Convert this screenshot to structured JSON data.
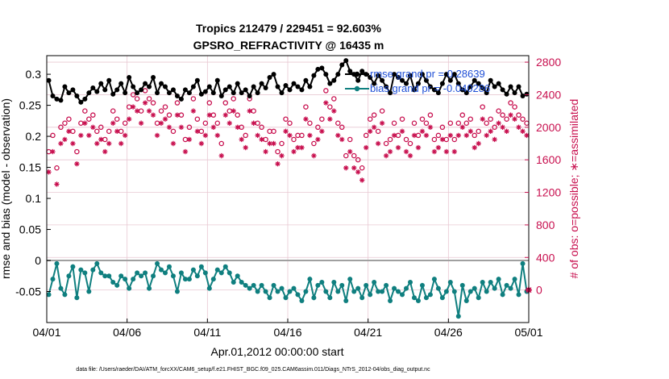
{
  "chart_data": {
    "type": "line",
    "title_line1": "Tropics 212479 / 229451 = 92.603%",
    "title_line2": "GPSRO_REFRACTIVITY @ 16435 m",
    "xlabel": "Apr.01,2012 00:00:00 start",
    "ylabel_left": "rmse and bias (model - observation)",
    "ylabel_right": "# of obs: o=possible; ∗=assimilated",
    "x_ticks": [
      "04/01",
      "04/06",
      "04/11",
      "04/16",
      "04/21",
      "04/26",
      "05/01"
    ],
    "x_range_days": [
      0,
      30
    ],
    "ylim_left": [
      -0.1,
      0.33
    ],
    "y_ticks_left": [
      "0.3",
      "0.25",
      "0.2",
      "0.15",
      "0.1",
      "0.05",
      "0",
      "-0.05"
    ],
    "y_tick_values_left": [
      0.3,
      0.25,
      0.2,
      0.15,
      0.1,
      0.05,
      0,
      -0.05
    ],
    "ylim_right": [
      -400,
      2880
    ],
    "y_ticks_right": [
      "2800",
      "2400",
      "2000",
      "1600",
      "1200",
      "800",
      "400",
      "0"
    ],
    "y_tick_values_right": [
      2800,
      2400,
      2000,
      1600,
      1200,
      800,
      400,
      0
    ],
    "legend": {
      "rmse_label": "rmse grand pr = 0.28639",
      "bias_label": "bias grand pr = -0.040286"
    },
    "footer": "data file: /Users/raeder/DAI/ATM_forcXX/CAM6_setup/f.e21.FHIST_BGC.f09_025.CAM6assim.011/Diags_NTrS_2012-04/obs_diag_output.nc",
    "colors": {
      "rmse": "#000000",
      "bias": "#0f7f7f",
      "obs": "#c8104f",
      "legend_text": "#1f4fd6",
      "grid": "#e8c8d2",
      "zero_line": "#a0a0a0"
    },
    "n_points": 120,
    "series": [
      {
        "name": "rmse",
        "axis": "left",
        "values": [
          0.29,
          0.265,
          0.26,
          0.258,
          0.28,
          0.27,
          0.275,
          0.265,
          0.255,
          0.26,
          0.27,
          0.278,
          0.272,
          0.285,
          0.275,
          0.29,
          0.268,
          0.275,
          0.285,
          0.27,
          0.295,
          0.28,
          0.27,
          0.275,
          0.285,
          0.28,
          0.295,
          0.27,
          0.285,
          0.28,
          0.27,
          0.275,
          0.265,
          0.26,
          0.275,
          0.27,
          0.28,
          0.29,
          0.268,
          0.272,
          0.28,
          0.27,
          0.29,
          0.265,
          0.275,
          0.28,
          0.27,
          0.285,
          0.27,
          0.275,
          0.265,
          0.28,
          0.27,
          0.285,
          0.278,
          0.295,
          0.3,
          0.28,
          0.27,
          0.282,
          0.275,
          0.285,
          0.28,
          0.275,
          0.29,
          0.28,
          0.298,
          0.308,
          0.31,
          0.3,
          0.285,
          0.29,
          0.3,
          0.315,
          0.322,
          0.305,
          0.3,
          0.29,
          0.305,
          0.3,
          0.295,
          0.285,
          0.298,
          0.29,
          0.28,
          0.27,
          0.3,
          0.295,
          0.29,
          0.285,
          0.298,
          0.275,
          0.285,
          0.3,
          0.29,
          0.28,
          0.275,
          0.27,
          0.285,
          0.3,
          0.29,
          0.3,
          0.285,
          0.275,
          0.27,
          0.28,
          0.29,
          0.285,
          0.278,
          0.27,
          0.29,
          0.28,
          0.285,
          0.275,
          0.268,
          0.28,
          0.27,
          0.28,
          0.265,
          0.268
        ]
      },
      {
        "name": "bias",
        "axis": "left",
        "values": [
          -0.055,
          -0.03,
          -0.005,
          -0.045,
          -0.055,
          -0.025,
          -0.01,
          -0.06,
          -0.015,
          -0.02,
          -0.05,
          -0.015,
          -0.005,
          -0.02,
          -0.025,
          -0.025,
          -0.035,
          -0.04,
          -0.025,
          -0.03,
          -0.045,
          -0.03,
          -0.02,
          -0.025,
          -0.02,
          -0.045,
          -0.025,
          -0.005,
          -0.015,
          -0.02,
          -0.01,
          -0.025,
          -0.05,
          -0.02,
          -0.03,
          -0.03,
          -0.015,
          -0.025,
          -0.01,
          -0.02,
          -0.045,
          -0.03,
          -0.015,
          -0.02,
          -0.01,
          -0.02,
          -0.035,
          -0.025,
          -0.035,
          -0.04,
          -0.045,
          -0.04,
          -0.05,
          -0.04,
          -0.05,
          -0.06,
          -0.04,
          -0.05,
          -0.045,
          -0.06,
          -0.05,
          -0.045,
          -0.055,
          -0.065,
          -0.05,
          -0.03,
          -0.06,
          -0.04,
          -0.035,
          -0.05,
          -0.06,
          -0.035,
          -0.05,
          -0.04,
          -0.065,
          -0.03,
          -0.05,
          -0.045,
          -0.06,
          -0.04,
          -0.055,
          -0.035,
          -0.05,
          -0.05,
          -0.04,
          -0.065,
          -0.045,
          -0.05,
          -0.055,
          -0.045,
          -0.035,
          -0.06,
          -0.065,
          -0.04,
          -0.06,
          -0.055,
          -0.03,
          -0.045,
          -0.06,
          -0.05,
          -0.035,
          -0.05,
          -0.09,
          -0.04,
          -0.065,
          -0.05,
          -0.045,
          -0.06,
          -0.035,
          -0.05,
          -0.035,
          -0.045,
          -0.03,
          -0.055,
          -0.04,
          -0.045,
          -0.03,
          -0.055,
          -0.005,
          -0.05
        ]
      },
      {
        "name": "possible",
        "axis": "right",
        "marker": "o",
        "values": [
          1700,
          1900,
          1500,
          2000,
          2050,
          2100,
          1950,
          1700,
          2050,
          2200,
          2100,
          2150,
          1950,
          2000,
          1850,
          1950,
          2200,
          2100,
          1950,
          2050,
          2250,
          2400,
          2350,
          2200,
          2450,
          2350,
          2300,
          2050,
          2200,
          2250,
          2150,
          1950,
          2300,
          2150,
          1850,
          2000,
          2350,
          2100,
          1950,
          2050,
          2300,
          2150,
          2050,
          1800,
          2300,
          2200,
          2350,
          2150,
          2000,
          1900,
          2350,
          2200,
          2050,
          2000,
          1850,
          1950,
          1950,
          1700,
          1800,
          2100,
          2050,
          1850,
          1900,
          1900,
          2250,
          2050,
          1800,
          2000,
          2100,
          2450,
          2250,
          2350,
          2050,
          2000,
          1650,
          1850,
          1650,
          1600,
          1500,
          1900,
          2100,
          2150,
          1950,
          2200,
          1800,
          1850,
          2050,
          1900,
          2100,
          1850,
          1800,
          2050,
          1900,
          2100,
          2050,
          2150,
          1850,
          1900,
          2000,
          1850,
          2050,
          1850,
          2050,
          2150,
          2050,
          2100,
          1900,
          1950,
          2250,
          2050,
          2100,
          2000,
          2200,
          2150,
          2100,
          2300,
          2250,
          2150,
          2100,
          2050
        ]
      },
      {
        "name": "assimilated",
        "axis": "right",
        "marker": "*",
        "values": [
          1450,
          1700,
          1300,
          1800,
          1850,
          1950,
          1800,
          1550,
          1900,
          2050,
          1900,
          2000,
          1800,
          1850,
          1700,
          1800,
          2050,
          1950,
          1800,
          1900,
          2100,
          2250,
          2200,
          2050,
          2300,
          2200,
          2150,
          1900,
          2050,
          2100,
          2000,
          1800,
          2150,
          2000,
          1700,
          1850,
          2200,
          1950,
          1800,
          1900,
          2150,
          2000,
          1900,
          1650,
          2150,
          2050,
          2200,
          2000,
          1850,
          1750,
          2200,
          2050,
          1900,
          1850,
          1700,
          1800,
          1800,
          1550,
          1650,
          1950,
          1900,
          1700,
          1750,
          1750,
          2100,
          1900,
          1650,
          1850,
          1950,
          2300,
          2100,
          2200,
          1900,
          1850,
          1500,
          1700,
          1500,
          1450,
          1350,
          1750,
          1950,
          2000,
          1800,
          2050,
          1650,
          1700,
          1900,
          1750,
          1950,
          1700,
          1650,
          1900,
          1750,
          1950,
          1900,
          2000,
          1700,
          1750,
          1850,
          1700,
          1900,
          1700,
          1900,
          2000,
          1900,
          1950,
          1750,
          1800,
          2100,
          1900,
          1950,
          1850,
          2050,
          2000,
          1950,
          2150,
          2100,
          2000,
          1950,
          1900
        ]
      },
      {
        "name": "zero_marker",
        "axis": "right",
        "values": [
          0
        ]
      }
    ]
  }
}
